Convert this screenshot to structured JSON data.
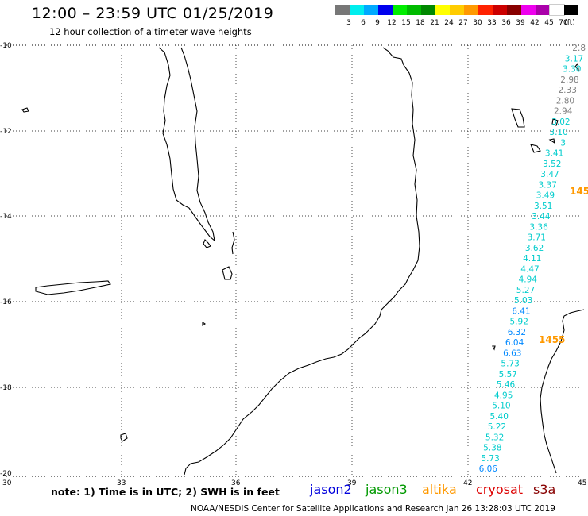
{
  "header": {
    "title": "12:00 – 23:59 UTC 01/25/2019",
    "subtitle": "12 hour collection of altimeter wave heights"
  },
  "scale": {
    "unit": "(ft)",
    "colors": [
      "#777777",
      "#00eeee",
      "#00aaff",
      "#0000ee",
      "#00ee00",
      "#00bb00",
      "#008800",
      "#ffff00",
      "#ffcc00",
      "#ff9900",
      "#ff2200",
      "#cc0000",
      "#880000",
      "#ee00ee",
      "#aa00aa",
      "#ffffff",
      "#000000"
    ],
    "labels": [
      "3",
      "6",
      "9",
      "12",
      "15",
      "18",
      "21",
      "24",
      "27",
      "30",
      "33",
      "36",
      "39",
      "42",
      "45",
      "70"
    ]
  },
  "axes": {
    "lat_labels": [
      "-10",
      "-12",
      "-14",
      "-16",
      "-18",
      "-20"
    ],
    "lon_labels": [
      "30",
      "33",
      "36",
      "39",
      "42",
      "45"
    ]
  },
  "track": {
    "values": [
      {
        "v": "2.8",
        "c": "#808080"
      },
      {
        "v": "3.17",
        "c": "#00cccc"
      },
      {
        "v": "3.30",
        "c": "#00cccc"
      },
      {
        "v": "2.98",
        "c": "#808080"
      },
      {
        "v": "2.33",
        "c": "#808080"
      },
      {
        "v": "2.80",
        "c": "#808080"
      },
      {
        "v": "2.94",
        "c": "#808080"
      },
      {
        "v": "3.02",
        "c": "#00cccc"
      },
      {
        "v": "3.10",
        "c": "#00cccc"
      },
      {
        "v": "3",
        "c": "#00cccc"
      },
      {
        "v": "3.41",
        "c": "#00cccc"
      },
      {
        "v": "3.52",
        "c": "#00cccc"
      },
      {
        "v": "3.47",
        "c": "#00cccc"
      },
      {
        "v": "3.37",
        "c": "#00cccc"
      },
      {
        "v": "3.49",
        "c": "#00cccc"
      },
      {
        "v": "3.51",
        "c": "#00cccc"
      },
      {
        "v": "3.44",
        "c": "#00cccc"
      },
      {
        "v": "3.36",
        "c": "#00cccc"
      },
      {
        "v": "3.71",
        "c": "#00cccc"
      },
      {
        "v": "3.62",
        "c": "#00cccc"
      },
      {
        "v": "4.11",
        "c": "#00cccc"
      },
      {
        "v": "4.47",
        "c": "#00cccc"
      },
      {
        "v": "4.94",
        "c": "#00cccc"
      },
      {
        "v": "5.27",
        "c": "#00cccc"
      },
      {
        "v": "5.03",
        "c": "#00cccc"
      },
      {
        "v": "6.41",
        "c": "#0088ff"
      },
      {
        "v": "5.92",
        "c": "#00cccc"
      },
      {
        "v": "6.32",
        "c": "#0088ff"
      },
      {
        "v": "6.04",
        "c": "#0088ff"
      },
      {
        "v": "6.63",
        "c": "#0088ff"
      },
      {
        "v": "5.73",
        "c": "#00cccc"
      },
      {
        "v": "5.57",
        "c": "#00cccc"
      },
      {
        "v": "5.46",
        "c": "#00cccc"
      },
      {
        "v": "4.95",
        "c": "#00cccc"
      },
      {
        "v": "5.10",
        "c": "#00cccc"
      },
      {
        "v": "5.40",
        "c": "#00cccc"
      },
      {
        "v": "5.22",
        "c": "#00cccc"
      },
      {
        "v": "5.32",
        "c": "#00cccc"
      },
      {
        "v": "5.38",
        "c": "#00cccc"
      },
      {
        "v": "5.73",
        "c": "#00cccc"
      },
      {
        "v": "6.06",
        "c": "#0088ff"
      }
    ],
    "orange_labels": [
      "145",
      "1455"
    ],
    "orange_color": "#ff9900"
  },
  "legend": {
    "note": "note:  1) Time is in UTC;  2) SWH is in feet",
    "satellites": [
      {
        "name": "jason2",
        "color": "#0000dd"
      },
      {
        "name": "jason3",
        "color": "#009900"
      },
      {
        "name": "altika",
        "color": "#ff9900"
      },
      {
        "name": "cryosat",
        "color": "#dd0000"
      },
      {
        "name": "s3a",
        "color": "#880000"
      }
    ]
  },
  "footer": "NOAA/NESDIS Center for Satellite Applications and Research     Jan 26 13:28:03 UTC 2019"
}
